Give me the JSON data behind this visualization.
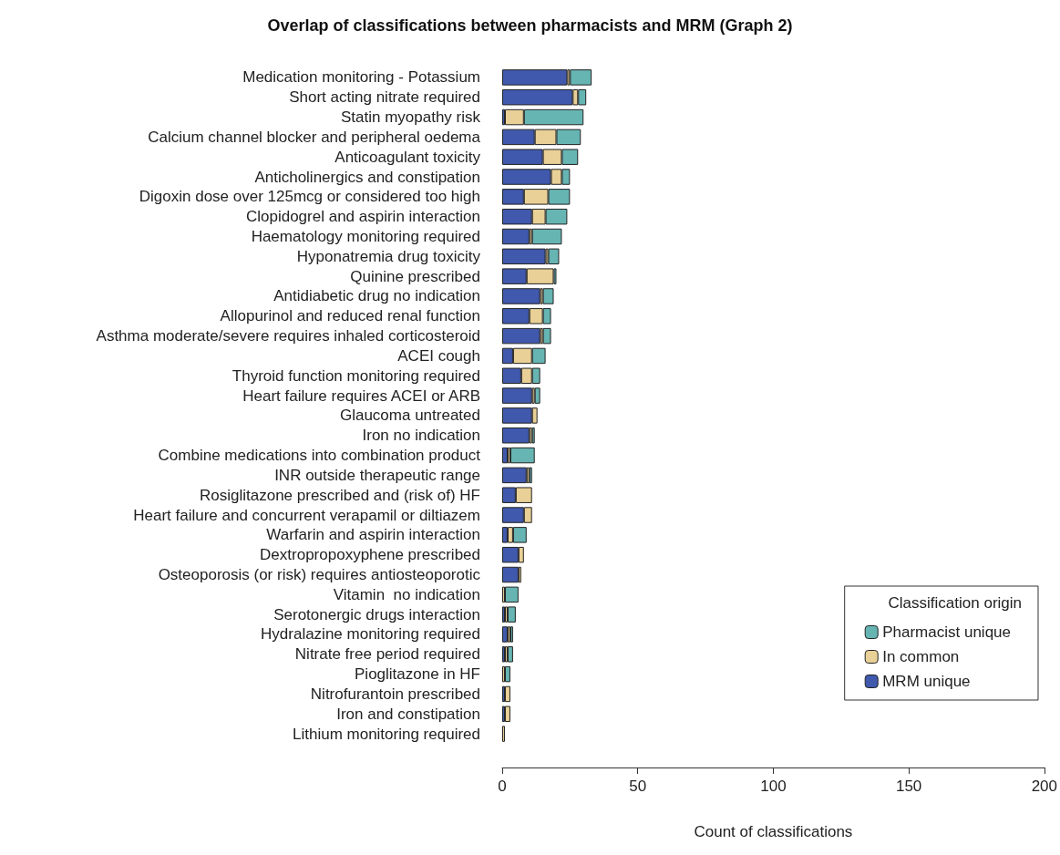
{
  "chart_data": {
    "type": "bar",
    "orientation": "horizontal",
    "stacked": true,
    "title": "Overlap of classifications between pharmacists and MRM (Graph 2)",
    "xlabel": "Count of classifications",
    "legend_title": "Classification origin",
    "legend": "bottom right",
    "grid": false,
    "categories": [
      "Medication monitoring - Potassium",
      "Short acting nitrate required",
      "Statin myopathy risk",
      "Calcium channel blocker and peripheral oedema",
      "Anticoagulant toxicity",
      "Anticholinergics and constipation",
      "Digoxin dose over 125mcg or considered too high",
      "Clopidogrel and aspirin interaction",
      "Haematology monitoring required",
      "Hyponatremia drug toxicity",
      "Quinine prescribed",
      "Antidiabetic drug no indication",
      "Allopurinol and reduced renal function",
      "Asthma moderate/severe requires inhaled corticosteroid",
      "ACEI cough",
      "Thyroid function monitoring required",
      "Heart failure requires ACEI or ARB",
      "Glaucoma untreated",
      "Iron no indication",
      "Combine medications into combination product",
      "INR outside therapeutic range",
      "Rosiglitazone prescribed and (risk of) HF",
      "Heart failure and concurrent verapamil or diltiazem",
      "Warfarin and aspirin interaction",
      "Dextropropoxyphene prescribed",
      "Osteoporosis (or risk) requires antiosteoporotic",
      "Vitamin  no indication",
      "Serotonergic drugs interaction",
      "Hydralazine monitoring required",
      "Nitrate free period required",
      "Pioglitazone in HF",
      "Nitrofurantoin prescribed",
      "Iron and constipation",
      "Lithium monitoring required"
    ],
    "xlim": [
      0,
      200
    ],
    "xticks": [
      0,
      50,
      100,
      150,
      200
    ],
    "series": [
      {
        "name": "MRM unique",
        "color": "#4059ad",
        "values": [
          24,
          26,
          1,
          12,
          15,
          18,
          8,
          11,
          10,
          16,
          9,
          14,
          10,
          14,
          4,
          7,
          11,
          11,
          10,
          2,
          9,
          5,
          8,
          2,
          6,
          6,
          0,
          1,
          2,
          1,
          0,
          1,
          1,
          0
        ]
      },
      {
        "name": "In common",
        "color": "#e8d097",
        "values": [
          1,
          2,
          7,
          8,
          7,
          4,
          9,
          5,
          1,
          1,
          10,
          1,
          5,
          1,
          7,
          4,
          1,
          2,
          1,
          1,
          1,
          6,
          3,
          2,
          2,
          1,
          1,
          1,
          1,
          1,
          1,
          2,
          2,
          1
        ]
      },
      {
        "name": "Pharmacist unique",
        "color": "#66b5b3",
        "values": [
          8,
          3,
          22,
          9,
          6,
          3,
          8,
          8,
          11,
          4,
          1,
          4,
          3,
          3,
          5,
          3,
          2,
          0,
          1,
          9,
          1,
          0,
          0,
          5,
          0,
          0,
          5,
          3,
          1,
          2,
          2,
          0,
          0,
          0
        ]
      }
    ]
  }
}
